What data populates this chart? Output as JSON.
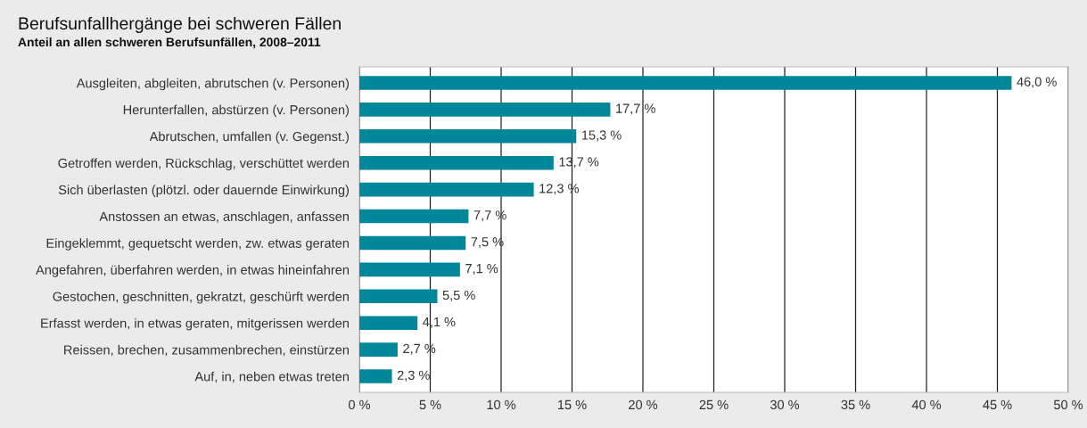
{
  "chart_data": {
    "type": "bar",
    "orientation": "horizontal",
    "title": "Berufsunfallhergänge bei schweren Fällen",
    "subtitle": "Anteil an allen schweren Berufsunfällen, 2008–2011",
    "categories": [
      "Ausgleiten, abgleiten, abrutschen (v. Personen)",
      "Herunterfallen, abstürzen (v. Personen)",
      "Abrutschen, umfallen (v. Gegenst.)",
      "Getroffen werden, Rückschlag, verschüttet werden",
      "Sich überlasten (plötzl. oder dauernde Einwirkung)",
      "Anstossen an etwas, anschlagen, anfassen",
      "Eingeklemmt, gequetscht werden, zw. etwas geraten",
      "Angefahren, überfahren werden, in etwas hineinfahren",
      "Gestochen, geschnitten, gekratzt, geschürft werden",
      "Erfasst werden, in etwas geraten, mitgerissen werden",
      "Reissen, brechen, zusammenbrechen, einstürzen",
      "Auf, in, neben etwas treten"
    ],
    "values": [
      46.0,
      17.7,
      15.3,
      13.7,
      12.3,
      7.7,
      7.5,
      7.1,
      5.5,
      4.1,
      2.7,
      2.3
    ],
    "value_labels": [
      "46,0 %",
      "17,7 %",
      "15,3 %",
      "13,7 %",
      "12,3 %",
      "7,7 %",
      "7,5 %",
      "7,1 %",
      "5,5 %",
      "4,1 %",
      "2,7 %",
      "2,3 %"
    ],
    "color": "#00879a",
    "xlim": [
      0,
      50
    ],
    "xticks": [
      {
        "value": 0,
        "label": "0 %"
      },
      {
        "value": 5,
        "label": "5 %"
      },
      {
        "value": 10,
        "label": "10 %"
      },
      {
        "value": 15,
        "label": "15 %"
      },
      {
        "value": 20,
        "label": "20 %"
      },
      {
        "value": 25,
        "label": "25 %"
      },
      {
        "value": 30,
        "label": "30 %"
      },
      {
        "value": 35,
        "label": "35 %"
      },
      {
        "value": 40,
        "label": "40 %"
      },
      {
        "value": 45,
        "label": "45 %"
      },
      {
        "value": 50,
        "label": "50 %"
      }
    ],
    "grid": "x"
  }
}
